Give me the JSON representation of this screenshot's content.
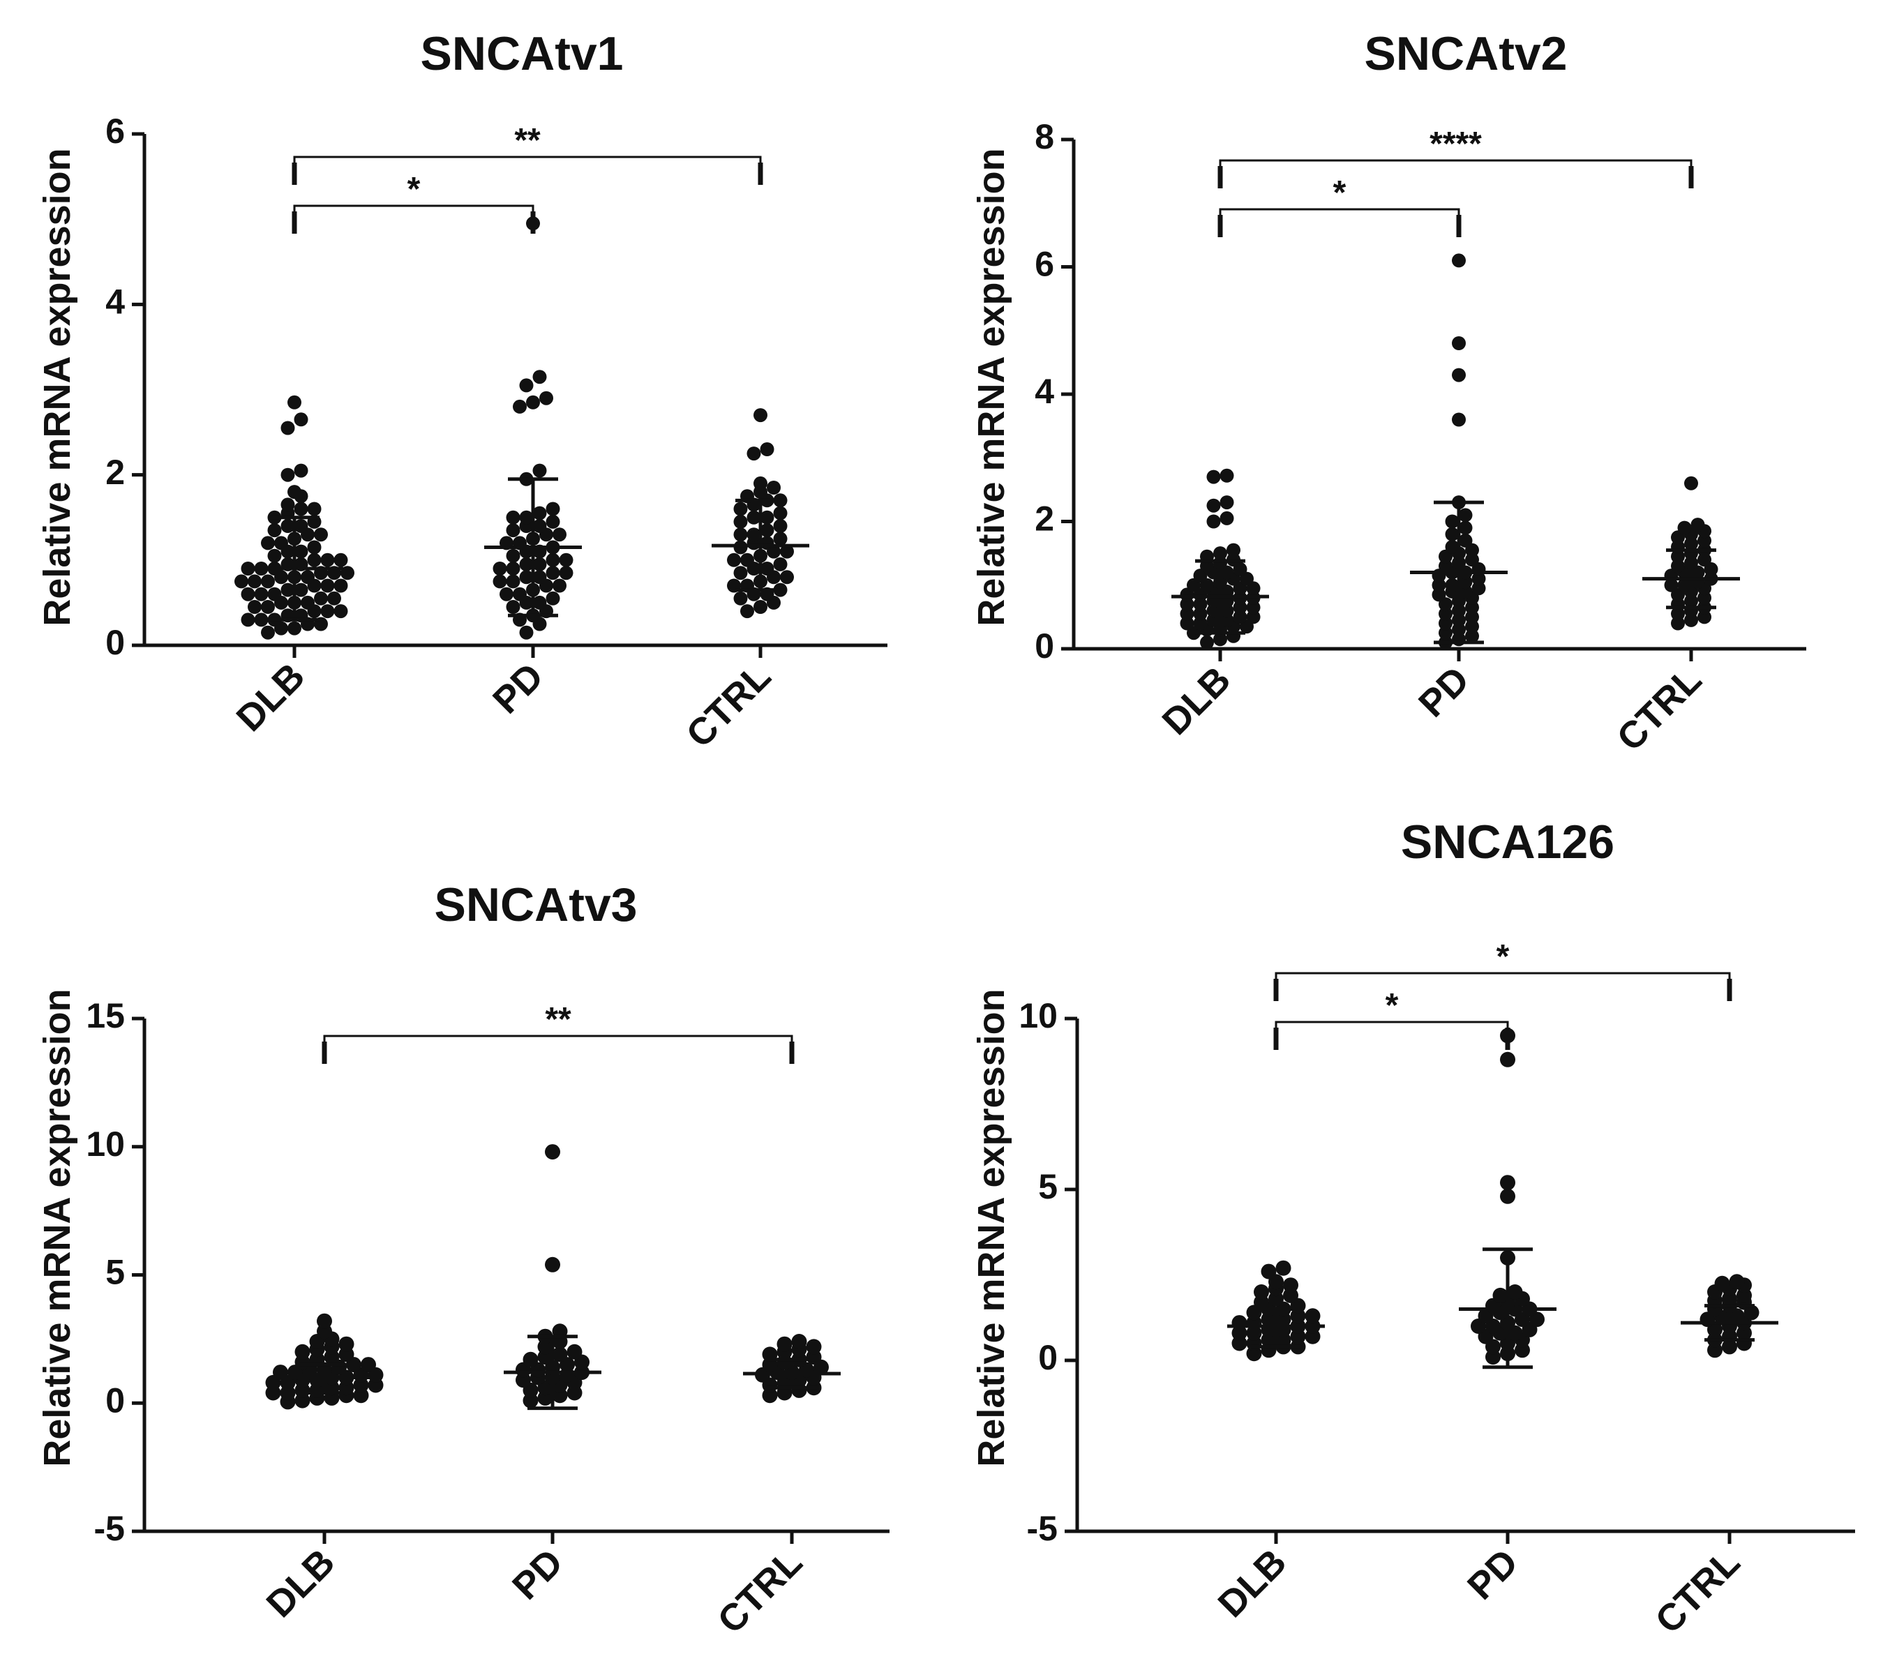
{
  "figure": {
    "colors": {
      "ink": "#111111",
      "background": "#ffffff"
    }
  },
  "chart_data": [
    {
      "id": "p1",
      "type": "scatter",
      "title": "SNCAtv1",
      "ylabel": "Relative mRNA expression",
      "xlabel": "",
      "categories": [
        "DLB",
        "PD",
        "CTRL"
      ],
      "ylim": [
        0,
        6
      ],
      "yticks": [
        0,
        2,
        4,
        6
      ],
      "ytick_labels": [
        "0",
        "2",
        "4",
        "6"
      ],
      "groups": [
        {
          "name": "DLB",
          "mean": 0.9,
          "sd_low": 0.3,
          "sd_high": 1.5,
          "values": [
            2.85,
            2.65,
            2.55,
            2.05,
            2.0,
            1.8,
            1.75,
            1.65,
            1.6,
            1.6,
            1.55,
            1.5,
            1.45,
            1.4,
            1.4,
            1.35,
            1.3,
            1.3,
            1.25,
            1.2,
            1.2,
            1.15,
            1.1,
            1.1,
            1.05,
            1.0,
            1.0,
            1.0,
            0.95,
            0.95,
            0.9,
            0.9,
            0.9,
            0.85,
            0.85,
            0.85,
            0.8,
            0.8,
            0.8,
            0.75,
            0.75,
            0.75,
            0.7,
            0.7,
            0.7,
            0.65,
            0.65,
            0.6,
            0.6,
            0.6,
            0.55,
            0.55,
            0.5,
            0.5,
            0.5,
            0.45,
            0.45,
            0.4,
            0.4,
            0.4,
            0.35,
            0.35,
            0.3,
            0.3,
            0.3,
            0.25,
            0.25,
            0.2,
            0.2,
            0.15
          ]
        },
        {
          "name": "PD",
          "mean": 1.15,
          "sd_low": 0.35,
          "sd_high": 1.95,
          "values": [
            4.95,
            3.15,
            3.05,
            2.9,
            2.85,
            2.8,
            2.05,
            1.95,
            1.6,
            1.55,
            1.5,
            1.5,
            1.45,
            1.4,
            1.4,
            1.35,
            1.3,
            1.3,
            1.25,
            1.2,
            1.2,
            1.15,
            1.1,
            1.1,
            1.05,
            1.0,
            1.0,
            0.95,
            0.95,
            0.9,
            0.9,
            0.85,
            0.85,
            0.8,
            0.8,
            0.75,
            0.75,
            0.7,
            0.7,
            0.65,
            0.6,
            0.6,
            0.55,
            0.5,
            0.5,
            0.45,
            0.4,
            0.35,
            0.3,
            0.25,
            0.15
          ]
        },
        {
          "name": "CTRL",
          "mean": 1.17,
          "sd_low": 0.65,
          "sd_high": 1.7,
          "values": [
            2.7,
            2.3,
            2.25,
            1.9,
            1.85,
            1.8,
            1.75,
            1.7,
            1.7,
            1.65,
            1.6,
            1.55,
            1.5,
            1.5,
            1.45,
            1.4,
            1.35,
            1.3,
            1.3,
            1.25,
            1.2,
            1.2,
            1.15,
            1.1,
            1.1,
            1.05,
            1.0,
            1.0,
            0.95,
            0.9,
            0.9,
            0.85,
            0.8,
            0.8,
            0.75,
            0.7,
            0.7,
            0.65,
            0.6,
            0.6,
            0.55,
            0.5,
            0.45,
            0.4
          ]
        }
      ],
      "significance": [
        {
          "from": "DLB",
          "to": "PD",
          "label": "*",
          "y": 5.6
        },
        {
          "from": "DLB",
          "to": "CTRL",
          "label": "**",
          "y": 6.2
        }
      ]
    },
    {
      "id": "p2",
      "type": "scatter",
      "title": "SNCAtv2",
      "ylabel": "Relative mRNA expression",
      "xlabel": "",
      "categories": [
        "DLB",
        "PD",
        "CTRL"
      ],
      "ylim": [
        0,
        8
      ],
      "yticks": [
        0,
        2,
        4,
        6,
        8
      ],
      "ytick_labels": [
        "0",
        "2",
        "4",
        "6",
        "8"
      ],
      "groups": [
        {
          "name": "DLB",
          "mean": 0.82,
          "sd_low": 0.25,
          "sd_high": 1.38,
          "values": [
            2.72,
            2.7,
            2.3,
            2.25,
            2.05,
            2.0,
            1.55,
            1.5,
            1.45,
            1.4,
            1.35,
            1.3,
            1.25,
            1.2,
            1.2,
            1.15,
            1.1,
            1.1,
            1.05,
            1.0,
            1.0,
            0.95,
            0.95,
            0.9,
            0.9,
            0.85,
            0.85,
            0.8,
            0.8,
            0.75,
            0.75,
            0.7,
            0.7,
            0.65,
            0.65,
            0.6,
            0.6,
            0.55,
            0.55,
            0.5,
            0.5,
            0.45,
            0.45,
            0.4,
            0.4,
            0.35,
            0.35,
            0.3,
            0.3,
            0.25,
            0.2,
            0.15,
            0.1
          ]
        },
        {
          "name": "PD",
          "mean": 1.2,
          "sd_low": 0.1,
          "sd_high": 2.3,
          "values": [
            6.1,
            4.8,
            4.3,
            3.6,
            2.3,
            2.1,
            2.0,
            1.9,
            1.8,
            1.7,
            1.6,
            1.55,
            1.5,
            1.45,
            1.4,
            1.35,
            1.3,
            1.25,
            1.2,
            1.2,
            1.15,
            1.1,
            1.05,
            1.0,
            1.0,
            0.95,
            0.9,
            0.9,
            0.85,
            0.8,
            0.75,
            0.7,
            0.65,
            0.6,
            0.55,
            0.5,
            0.45,
            0.4,
            0.35,
            0.3,
            0.25,
            0.2,
            0.15,
            0.1
          ]
        },
        {
          "name": "CTRL",
          "mean": 1.1,
          "sd_low": 0.65,
          "sd_high": 1.55,
          "values": [
            2.6,
            1.95,
            1.9,
            1.85,
            1.8,
            1.75,
            1.7,
            1.65,
            1.6,
            1.55,
            1.5,
            1.45,
            1.4,
            1.35,
            1.3,
            1.25,
            1.2,
            1.2,
            1.15,
            1.1,
            1.05,
            1.0,
            1.0,
            0.95,
            0.9,
            0.85,
            0.8,
            0.75,
            0.7,
            0.65,
            0.6,
            0.55,
            0.5,
            0.45,
            0.4
          ]
        }
      ],
      "significance": [
        {
          "from": "DLB",
          "to": "PD",
          "label": "*",
          "y": 7.4
        },
        {
          "from": "DLB",
          "to": "CTRL",
          "label": "****",
          "y": 8.2
        }
      ]
    },
    {
      "id": "p3",
      "type": "scatter",
      "title": "SNCAtv3",
      "ylabel": "Relative mRNA expression",
      "xlabel": "",
      "categories": [
        "DLB",
        "PD",
        "CTRL"
      ],
      "ylim": [
        -5,
        15
      ],
      "yticks": [
        -5,
        0,
        5,
        10,
        15
      ],
      "ytick_labels": [
        "-5",
        "0",
        "5",
        "10",
        "15"
      ],
      "groups": [
        {
          "name": "DLB",
          "mean": 1.0,
          "sd_low": 0.4,
          "sd_high": 1.5,
          "values": [
            3.2,
            2.8,
            2.5,
            2.4,
            2.3,
            2.2,
            2.1,
            2.0,
            1.9,
            1.8,
            1.7,
            1.6,
            1.5,
            1.5,
            1.4,
            1.3,
            1.3,
            1.2,
            1.2,
            1.1,
            1.1,
            1.0,
            1.0,
            0.9,
            0.9,
            0.8,
            0.8,
            0.7,
            0.7,
            0.6,
            0.6,
            0.5,
            0.5,
            0.4,
            0.4,
            0.3,
            0.3,
            0.2,
            0.2,
            0.1,
            0.05
          ]
        },
        {
          "name": "PD",
          "mean": 1.2,
          "sd_low": -0.2,
          "sd_high": 2.6,
          "values": [
            9.8,
            5.4,
            2.8,
            2.6,
            2.4,
            2.2,
            2.0,
            1.9,
            1.8,
            1.7,
            1.6,
            1.5,
            1.4,
            1.3,
            1.3,
            1.2,
            1.1,
            1.0,
            1.0,
            0.9,
            0.8,
            0.7,
            0.6,
            0.5,
            0.4,
            0.3,
            0.2,
            0.1
          ]
        },
        {
          "name": "CTRL",
          "mean": 1.15,
          "sd_low": 0.6,
          "sd_high": 1.7,
          "values": [
            2.4,
            2.3,
            2.2,
            2.1,
            2.0,
            1.9,
            1.8,
            1.7,
            1.6,
            1.5,
            1.4,
            1.3,
            1.2,
            1.2,
            1.1,
            1.0,
            0.9,
            0.8,
            0.7,
            0.6,
            0.5,
            0.4,
            0.3
          ]
        }
      ],
      "significance": [
        {
          "from": "DLB",
          "to": "CTRL",
          "label": "**",
          "y": 14.5
        }
      ]
    },
    {
      "id": "p4",
      "type": "scatter",
      "title": "SNCA126",
      "ylabel": "Relative mRNA expression",
      "xlabel": "",
      "categories": [
        "DLB",
        "PD",
        "CTRL"
      ],
      "ylim": [
        -5,
        10
      ],
      "yticks": [
        -5,
        0,
        5,
        10
      ],
      "ytick_labels": [
        "-5",
        "0",
        "5",
        "10"
      ],
      "groups": [
        {
          "name": "DLB",
          "mean": 1.0,
          "sd_low": 0.4,
          "sd_high": 1.5,
          "values": [
            2.7,
            2.6,
            2.3,
            2.2,
            2.1,
            2.0,
            1.9,
            1.8,
            1.7,
            1.6,
            1.5,
            1.5,
            1.4,
            1.3,
            1.3,
            1.2,
            1.2,
            1.1,
            1.1,
            1.0,
            1.0,
            0.9,
            0.9,
            0.8,
            0.8,
            0.7,
            0.7,
            0.6,
            0.6,
            0.5,
            0.5,
            0.4,
            0.4,
            0.3,
            0.2
          ]
        },
        {
          "name": "PD",
          "mean": 1.5,
          "sd_low": -0.2,
          "sd_high": 3.25,
          "values": [
            9.5,
            8.8,
            5.2,
            4.8,
            3.0,
            2.0,
            1.9,
            1.8,
            1.7,
            1.6,
            1.5,
            1.5,
            1.4,
            1.3,
            1.2,
            1.2,
            1.1,
            1.0,
            1.0,
            0.9,
            0.8,
            0.8,
            0.7,
            0.6,
            0.5,
            0.4,
            0.3,
            0.2,
            0.1
          ]
        },
        {
          "name": "CTRL",
          "mean": 1.1,
          "sd_low": 0.6,
          "sd_high": 1.6,
          "values": [
            2.3,
            2.25,
            2.2,
            2.1,
            2.0,
            1.9,
            1.8,
            1.75,
            1.7,
            1.6,
            1.5,
            1.4,
            1.3,
            1.25,
            1.2,
            1.1,
            1.0,
            0.9,
            0.8,
            0.7,
            0.6,
            0.5,
            0.4,
            0.3
          ]
        }
      ],
      "significance": [
        {
          "from": "DLB",
          "to": "PD",
          "label": "*",
          "y": 11.2
        },
        {
          "from": "DLB",
          "to": "CTRL",
          "label": "*",
          "y": 12.6
        }
      ]
    }
  ]
}
